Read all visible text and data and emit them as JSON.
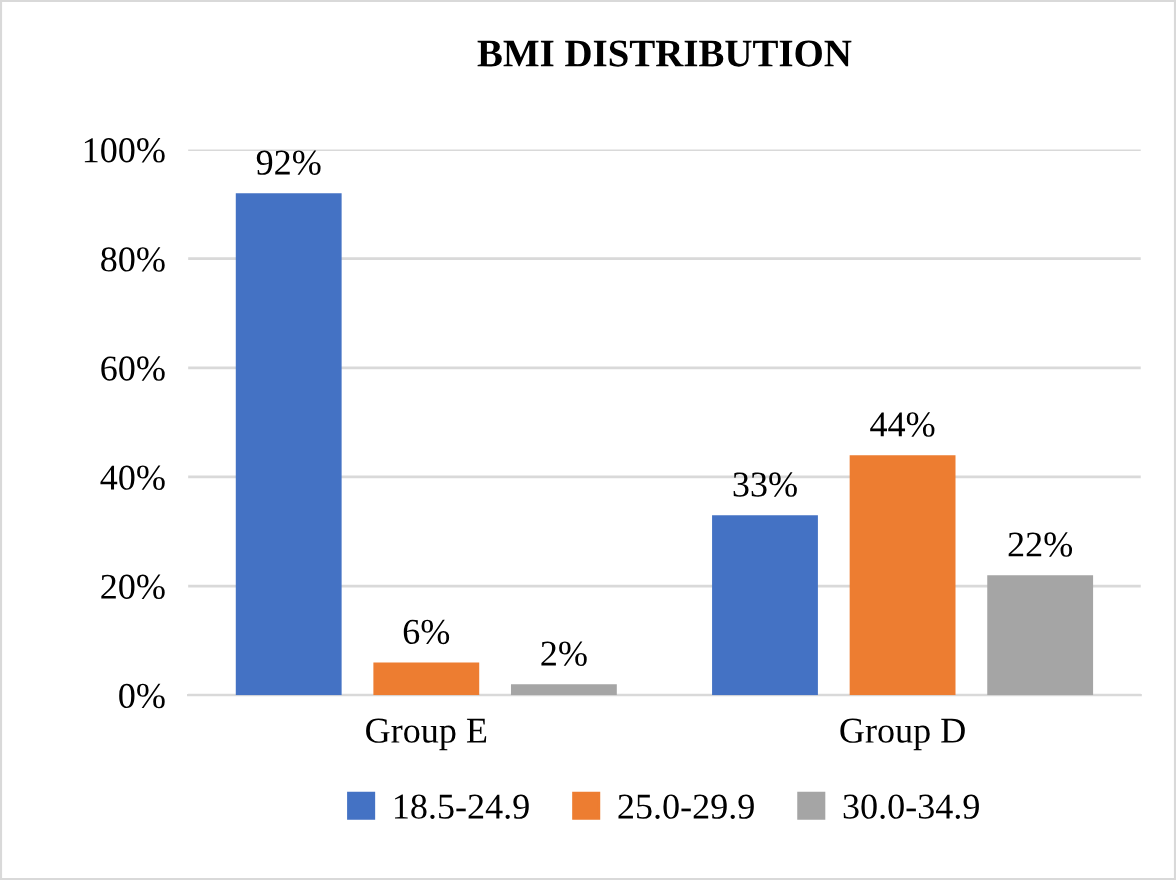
{
  "chart_data": {
    "type": "bar",
    "title": "BMI DISTRIBUTION",
    "categories": [
      "Group E",
      "Group D"
    ],
    "series": [
      {
        "name": "18.5-24.9",
        "color": "#4472c4",
        "values": [
          92,
          33
        ],
        "value_labels": [
          "92%",
          "33%"
        ]
      },
      {
        "name": "25.0-29.9",
        "color": "#ed7d31",
        "values": [
          6,
          44
        ],
        "value_labels": [
          "6%",
          "44%"
        ]
      },
      {
        "name": "30.0-34.9",
        "color": "#a5a5a5",
        "values": [
          2,
          22
        ],
        "value_labels": [
          "2%",
          "22%"
        ]
      }
    ],
    "ylim": [
      0,
      100
    ],
    "yticks": [
      {
        "value": 0,
        "label": "0%"
      },
      {
        "value": 20,
        "label": "20%"
      },
      {
        "value": 40,
        "label": "40%"
      },
      {
        "value": 60,
        "label": "60%"
      },
      {
        "value": 80,
        "label": "80%"
      },
      {
        "value": 100,
        "label": "100%"
      }
    ],
    "grid": "y",
    "legend": "bottom"
  }
}
